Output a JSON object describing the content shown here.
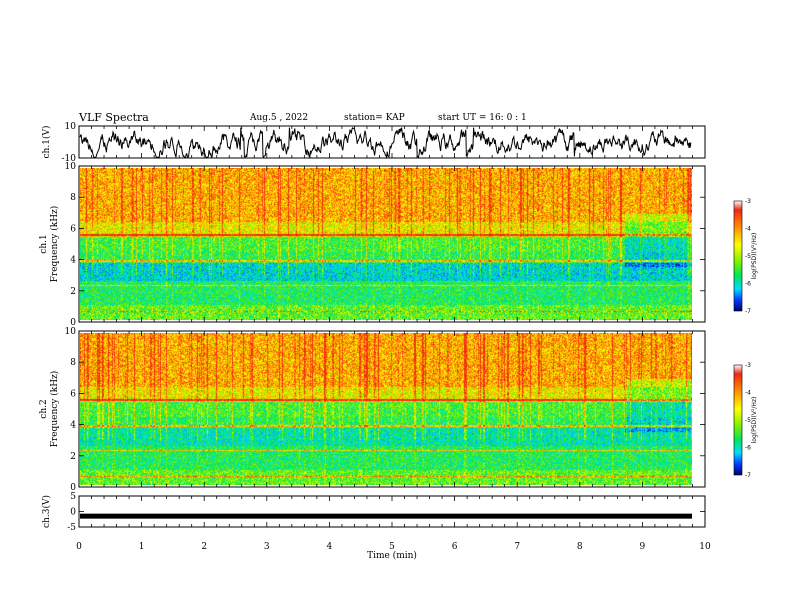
{
  "header": {
    "title": "VLF Spectra",
    "date": "Aug.5 , 2022",
    "station": "station= KAP",
    "start": "start UT = 16: 0 : 1"
  },
  "chart_data": [
    {
      "type": "line",
      "title": "VLF Spectra",
      "ylabel": "ch.1(V)",
      "ylim": [
        -10,
        10
      ],
      "xlim": [
        0,
        10
      ],
      "yticks": [
        "10",
        "-10"
      ],
      "notes": "noisy waveform oscillating roughly between -8 and 8 V",
      "color": "#000000"
    },
    {
      "type": "heatmap",
      "ylabel": "ch.1 Frequency (kHz)",
      "ylim": [
        0,
        10
      ],
      "yticks": [
        "0",
        "2",
        "4",
        "6",
        "8",
        "10"
      ],
      "xlim": [
        0,
        10
      ],
      "colorbar": {
        "label": "log(PSD)(V²/Hz)",
        "ticks": [
          "-3",
          "-4",
          "-5",
          "-6",
          "-7"
        ],
        "range": [
          -7,
          -3
        ]
      }
    },
    {
      "type": "heatmap",
      "ylabel": "ch.2 Frequency (kHz)",
      "ylim": [
        0,
        10
      ],
      "yticks": [
        "0",
        "2",
        "4",
        "6",
        "8",
        "10"
      ],
      "xlim": [
        0,
        10
      ],
      "colorbar": {
        "label": "log(PSD)(V²/Hz)",
        "ticks": [
          "-3",
          "-4",
          "-5",
          "-6",
          "-7"
        ],
        "range": [
          -7,
          -3
        ]
      }
    },
    {
      "type": "line",
      "ylabel": "ch.3(V)",
      "ylim": [
        -5,
        5
      ],
      "yticks": [
        "5",
        "0",
        "-5"
      ],
      "xlim": [
        0,
        10
      ],
      "xlabel": "Time (min)",
      "xticks": [
        "0",
        "1",
        "2",
        "3",
        "4",
        "5",
        "6",
        "7",
        "8",
        "9",
        "10"
      ],
      "notes": "flat thick line near -1.5 V",
      "level": -1.5
    }
  ]
}
